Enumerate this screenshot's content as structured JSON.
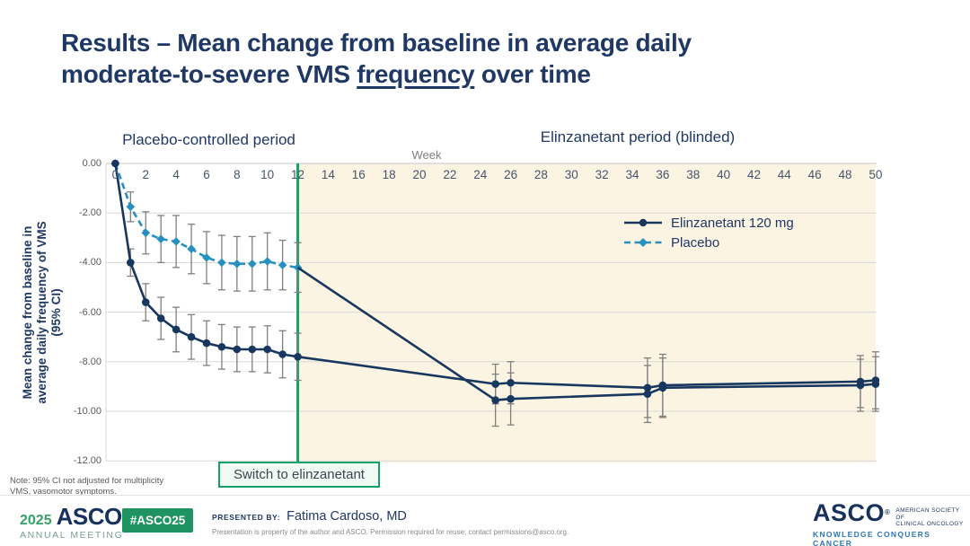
{
  "slide": {
    "title": {
      "line1": "Results – Mean change from baseline in average daily",
      "line2_pre": "moderate-to-severe VMS ",
      "line2_underline": "frequency",
      "line2_post": " over time"
    }
  },
  "chart_data": {
    "type": "line",
    "xlabel": "Week",
    "ylabel_lines": [
      "Mean change from baseline in",
      "average daily frequency of  VMS",
      "(95% CI)"
    ],
    "period_labels": {
      "left": "Placebo-controlled period",
      "right": "Elinzanetant period (blinded)"
    },
    "xlim": [
      0,
      50
    ],
    "ylim": [
      -12,
      0
    ],
    "x_ticks": [
      0,
      2,
      4,
      6,
      8,
      10,
      12,
      14,
      16,
      18,
      20,
      22,
      24,
      26,
      28,
      30,
      32,
      34,
      36,
      38,
      40,
      42,
      44,
      46,
      48,
      50
    ],
    "y_ticks": [
      0,
      -2,
      -4,
      -6,
      -8,
      -10,
      -12
    ],
    "y_tick_labels": [
      "0.00",
      "-2.00",
      "-4.00",
      "-6.00",
      "-8.00",
      "-10.00",
      "-12.00"
    ],
    "grid": true,
    "gridline_color": "#d8d8d8",
    "error_bar_color": "#7f7f7f",
    "shaded_region": {
      "from_week": 12,
      "to_week": 50,
      "color": "#fbf4e2"
    },
    "switch_line": {
      "week": 12,
      "color": "#14a169",
      "label": "Switch to elinzanetant"
    },
    "legend_position": "top-right",
    "series": [
      {
        "name": "Elinzanetant 120 mg",
        "color": "#17375e",
        "line_style": "solid",
        "marker": "circle",
        "x": [
          0,
          1,
          2,
          3,
          4,
          5,
          6,
          7,
          8,
          9,
          10,
          11,
          12,
          25,
          26,
          35,
          36,
          49,
          50
        ],
        "y": [
          0.0,
          -4.0,
          -5.6,
          -6.25,
          -6.7,
          -7.0,
          -7.25,
          -7.4,
          -7.5,
          -7.5,
          -7.5,
          -7.7,
          -7.8,
          -8.9,
          -8.85,
          -9.05,
          -8.95,
          -8.8,
          -8.75
        ],
        "ci": [
          0,
          0.55,
          0.75,
          0.85,
          0.9,
          0.9,
          0.9,
          0.9,
          0.9,
          0.9,
          0.95,
          0.95,
          0.95,
          0.8,
          0.85,
          1.2,
          1.25,
          1.05,
          1.15
        ]
      },
      {
        "name": "Placebo",
        "color": "#2790bf",
        "line_style": "dashed",
        "marker": "diamond",
        "x": [
          0,
          1,
          2,
          3,
          4,
          5,
          6,
          7,
          8,
          9,
          10,
          11,
          12
        ],
        "y": [
          0.0,
          -1.75,
          -2.8,
          -3.05,
          -3.15,
          -3.45,
          -3.8,
          -4.0,
          -4.05,
          -4.05,
          -3.95,
          -4.1,
          -4.2
        ],
        "ci": [
          0,
          0.6,
          0.85,
          0.95,
          1.05,
          1.0,
          1.05,
          1.1,
          1.1,
          1.1,
          1.15,
          1.0,
          1.0
        ]
      },
      {
        "name": "Placebo group after switch to elinzanetant (unlabeled continuation)",
        "color": "#17375e",
        "line_style": "solid",
        "marker": "circle",
        "skip_first_marker": true,
        "in_legend": false,
        "x": [
          12,
          25,
          26,
          35,
          36,
          49,
          50
        ],
        "y": [
          -4.2,
          -9.55,
          -9.5,
          -9.3,
          -9.05,
          -8.95,
          -8.9
        ],
        "ci": [
          0,
          1.05,
          1.05,
          1.15,
          1.2,
          1.05,
          1.1
        ]
      }
    ]
  },
  "footnote": {
    "line1": "Note: 95% CI not adjusted for multiplicity",
    "line2": "VMS, vasomotor symptoms."
  },
  "footer": {
    "meeting_logo": {
      "year": "2025",
      "org": "ASCO",
      "reg": "®",
      "sub": "ANNUAL MEETING"
    },
    "hashtag": "#ASCO25",
    "presented_by_label": "PRESENTED BY:",
    "presenter": "Fatima Cardoso, MD",
    "disclaimer": "Presentation is property of the author and ASCO. Permission required for reuse; contact permissions@asco.org.",
    "asco_logo": {
      "org": "ASCO",
      "reg": "®",
      "society_line1": "AMERICAN SOCIETY OF",
      "society_line2": "CLINICAL ONCOLOGY",
      "tagline": "KNOWLEDGE CONQUERS CANCER"
    }
  }
}
